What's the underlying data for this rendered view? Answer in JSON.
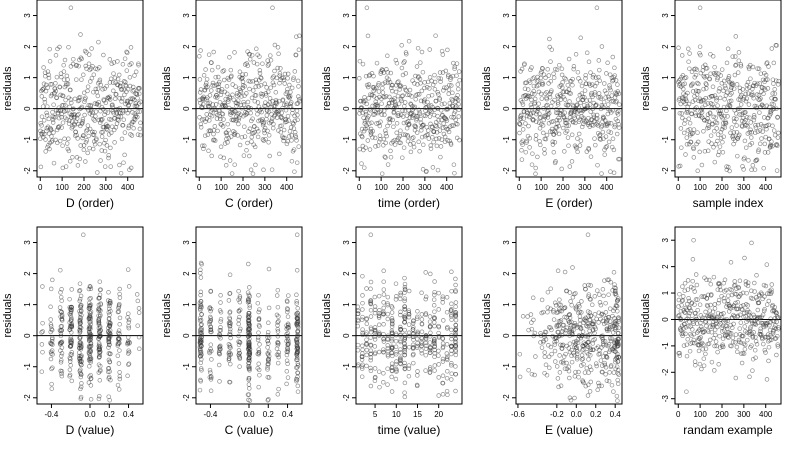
{
  "chart_data": [
    {
      "type": "scatter",
      "xlabel": "D (order)",
      "ylabel": "residuals",
      "xlim": [
        -15,
        470
      ],
      "ylim": [
        -2.2,
        3.5
      ],
      "xticks": [
        0,
        100,
        200,
        300,
        400
      ],
      "xtick_labels": [
        "0",
        "100",
        "200",
        "300",
        "400"
      ],
      "yticks": [
        -2,
        -1,
        0,
        1,
        2,
        3
      ],
      "ytick_labels": [
        "-2",
        "-1",
        "0",
        "1",
        "2",
        "3"
      ],
      "hline": 0,
      "x_kind": "index",
      "seed": 11,
      "outliers": [
        {
          "x": 140,
          "y": 3.25
        }
      ]
    },
    {
      "type": "scatter",
      "xlabel": "C (order)",
      "ylabel": "residuals",
      "xlim": [
        -15,
        470
      ],
      "ylim": [
        -2.2,
        3.5
      ],
      "xticks": [
        0,
        100,
        200,
        300,
        400
      ],
      "xtick_labels": [
        "0",
        "100",
        "200",
        "300",
        "400"
      ],
      "yticks": [
        -2,
        -1,
        0,
        1,
        2,
        3
      ],
      "ytick_labels": [
        "-2",
        "-1",
        "0",
        "1",
        "2",
        "3"
      ],
      "hline": 0,
      "x_kind": "index",
      "seed": 23,
      "outliers": [
        {
          "x": 335,
          "y": 3.25
        }
      ]
    },
    {
      "type": "scatter",
      "xlabel": "time (order)",
      "ylabel": "residuals",
      "xlim": [
        -15,
        470
      ],
      "ylim": [
        -2.2,
        3.5
      ],
      "xticks": [
        0,
        100,
        200,
        300,
        400
      ],
      "xtick_labels": [
        "0",
        "100",
        "200",
        "300",
        "400"
      ],
      "yticks": [
        -2,
        -1,
        0,
        1,
        2,
        3
      ],
      "ytick_labels": [
        "-2",
        "-1",
        "0",
        "1",
        "2",
        "3"
      ],
      "hline": 0,
      "x_kind": "index",
      "seed": 37,
      "outliers": [
        {
          "x": 35,
          "y": 3.25
        }
      ]
    },
    {
      "type": "scatter",
      "xlabel": "E (order)",
      "ylabel": "residuals",
      "xlim": [
        -15,
        470
      ],
      "ylim": [
        -2.2,
        3.5
      ],
      "xticks": [
        0,
        100,
        200,
        300,
        400
      ],
      "xtick_labels": [
        "0",
        "100",
        "200",
        "300",
        "400"
      ],
      "yticks": [
        -2,
        -1,
        0,
        1,
        2,
        3
      ],
      "ytick_labels": [
        "-2",
        "-1",
        "0",
        "1",
        "2",
        "3"
      ],
      "hline": 0,
      "x_kind": "index",
      "seed": 41,
      "outliers": [
        {
          "x": 355,
          "y": 3.25
        }
      ]
    },
    {
      "type": "scatter",
      "xlabel": "sample index",
      "ylabel": "residuals",
      "xlim": [
        -15,
        470
      ],
      "ylim": [
        -2.2,
        3.5
      ],
      "xticks": [
        0,
        100,
        200,
        300,
        400
      ],
      "xtick_labels": [
        "0",
        "100",
        "200",
        "300",
        "400"
      ],
      "yticks": [
        -2,
        -1,
        0,
        1,
        2,
        3
      ],
      "ytick_labels": [
        "-2",
        "-1",
        "0",
        "1",
        "2",
        "3"
      ],
      "hline": 0,
      "x_kind": "index",
      "seed": 53,
      "outliers": [
        {
          "x": 100,
          "y": 3.25
        }
      ]
    },
    {
      "type": "scatter",
      "xlabel": "D (value)",
      "ylabel": "residuals",
      "xlim": [
        -0.55,
        0.55
      ],
      "ylim": [
        -2.2,
        3.5
      ],
      "xticks": [
        -0.4,
        0,
        0.2,
        0.4
      ],
      "xtick_labels": [
        "-0.4",
        "0.0",
        "0.2",
        "0.4"
      ],
      "yticks": [
        -2,
        -1,
        0,
        1,
        2,
        3
      ],
      "ytick_labels": [
        "-2",
        "-1",
        "0",
        "1",
        "2",
        "3"
      ],
      "hline": 0,
      "x_kind": "levels",
      "levels": [
        -0.5,
        -0.4,
        -0.3,
        -0.2,
        -0.1,
        0.0,
        0.1,
        0.2,
        0.3,
        0.4,
        0.5
      ],
      "level_weights": [
        1,
        2,
        3,
        5,
        7,
        7,
        7,
        5,
        3,
        2,
        1
      ],
      "jitter": 0.012,
      "seed": 61,
      "outliers": [
        {
          "x": -0.07,
          "y": 3.25
        }
      ]
    },
    {
      "type": "scatter",
      "xlabel": "C (value)",
      "ylabel": "residuals",
      "xlim": [
        -0.55,
        0.55
      ],
      "ylim": [
        -2.2,
        3.5
      ],
      "xticks": [
        -0.4,
        0,
        0.2,
        0.4
      ],
      "xtick_labels": [
        "-0.4",
        "0.0",
        "0.2",
        "0.4"
      ],
      "yticks": [
        -2,
        -1,
        0,
        1,
        2,
        3
      ],
      "ytick_labels": [
        "-2",
        "-1",
        "0",
        "1",
        "2",
        "3"
      ],
      "hline": 0,
      "x_kind": "levels",
      "levels": [
        -0.5,
        -0.4,
        -0.3,
        -0.2,
        -0.1,
        0.0,
        0.1,
        0.2,
        0.3,
        0.4,
        0.5
      ],
      "level_weights": [
        5,
        3,
        2,
        2,
        2,
        8,
        2,
        2,
        2,
        3,
        6
      ],
      "jitter": 0.01,
      "seed": 71,
      "outliers": [
        {
          "x": 0.5,
          "y": 3.25
        }
      ]
    },
    {
      "type": "scatter",
      "xlabel": "time (value)",
      "ylabel": "residuals",
      "xlim": [
        0.5,
        25.5
      ],
      "ylim": [
        -2.2,
        3.5
      ],
      "xticks": [
        5,
        10,
        15,
        20
      ],
      "xtick_labels": [
        "5",
        "10",
        "15",
        "20"
      ],
      "yticks": [
        -2,
        -1,
        0,
        1,
        2,
        3
      ],
      "ytick_labels": [
        "-2",
        "-1",
        "0",
        "1",
        "2",
        "3"
      ],
      "hline": 0,
      "x_kind": "levels",
      "levels": [
        1,
        2,
        3,
        4,
        5,
        6,
        7,
        8,
        9,
        10,
        11,
        12,
        13,
        14,
        15,
        16,
        17,
        18,
        19,
        20,
        21,
        22,
        23,
        24
      ],
      "level_weights": [
        1,
        1,
        1,
        1,
        1,
        1,
        1,
        1,
        1,
        1,
        1,
        2,
        1,
        1,
        1,
        1,
        1,
        1,
        1,
        1,
        1,
        1,
        1,
        2
      ],
      "jitter": 0.08,
      "seed": 83,
      "outliers": [
        {
          "x": 4,
          "y": 3.25
        }
      ]
    },
    {
      "type": "scatter",
      "xlabel": "E (value)",
      "ylabel": "residuals",
      "xlim": [
        -0.62,
        0.47
      ],
      "ylim": [
        -2.2,
        3.5
      ],
      "xticks": [
        -0.6,
        -0.2,
        0,
        0.2,
        0.4
      ],
      "xtick_labels": [
        "-0.6",
        "-0.2",
        "0.0",
        "0.2",
        "0.4"
      ],
      "yticks": [
        -2,
        -1,
        0,
        1,
        2,
        3
      ],
      "ytick_labels": [
        "-2",
        "-1",
        "0",
        "1",
        "2",
        "3"
      ],
      "hline": 0,
      "x_kind": "skew",
      "skew_center": 0.1,
      "skew_spread": 0.28,
      "seed": 97,
      "outliers": [
        {
          "x": 0.12,
          "y": 3.25
        }
      ]
    },
    {
      "type": "scatter",
      "xlabel": "randam example",
      "ylabel": "residuals",
      "xlim": [
        -15,
        470
      ],
      "ylim": [
        -3.2,
        3.5
      ],
      "xticks": [
        0,
        100,
        200,
        300,
        400
      ],
      "xtick_labels": [
        "0",
        "100",
        "200",
        "300",
        "400"
      ],
      "yticks": [
        -3,
        -2,
        -1,
        0,
        1,
        2,
        3
      ],
      "ytick_labels": [
        "-3",
        "-2",
        "-1",
        "0",
        "1",
        "2",
        "3"
      ],
      "hline": 0,
      "x_kind": "index",
      "seed": 109,
      "outliers": [
        {
          "x": 70,
          "y": 3.0
        },
        {
          "x": 335,
          "y": 2.9
        }
      ]
    }
  ]
}
